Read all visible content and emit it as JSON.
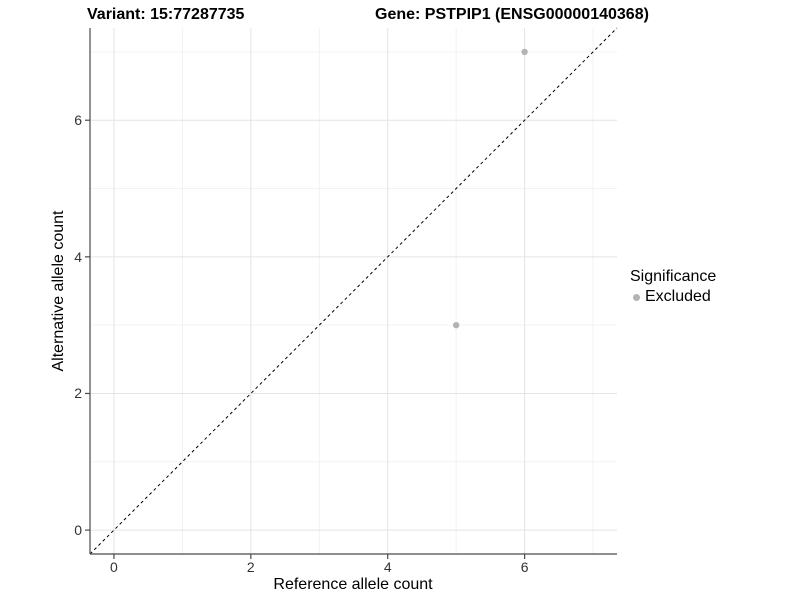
{
  "chart_data": {
    "type": "scatter",
    "titles": {
      "left": "Variant: 15:77287735",
      "right": "Gene: PSTPIP1 (ENSG00000140368)"
    },
    "xlabel": "Reference allele count",
    "ylabel": "Alternative allele count",
    "xlim": [
      -0.35,
      7.35
    ],
    "ylim": [
      -0.35,
      7.35
    ],
    "x_major_ticks": [
      0,
      2,
      4,
      6
    ],
    "x_minor_ticks": [
      1,
      3,
      5,
      7
    ],
    "y_major_ticks": [
      0,
      2,
      4,
      6
    ],
    "y_minor_ticks": [
      1,
      3,
      5,
      7
    ],
    "grid": true,
    "identity_line": {
      "slope": 1,
      "intercept": 0,
      "style": "dashed",
      "color": "#000000"
    },
    "series": [
      {
        "name": "Excluded",
        "color": "#b3b3b3",
        "points": [
          {
            "x": 6,
            "y": 7
          },
          {
            "x": 5,
            "y": 3
          }
        ]
      }
    ],
    "legend": {
      "title": "Significance",
      "position": "right",
      "items": [
        {
          "label": "Excluded",
          "color": "#b3b3b3",
          "marker": "circle"
        }
      ]
    },
    "colors": {
      "grid_major": "#e4e4e4",
      "grid_minor": "#f2f2f2",
      "axis_line": "#4a4a4a",
      "tick_text": "#333333",
      "point": "#b3b3b3"
    }
  }
}
